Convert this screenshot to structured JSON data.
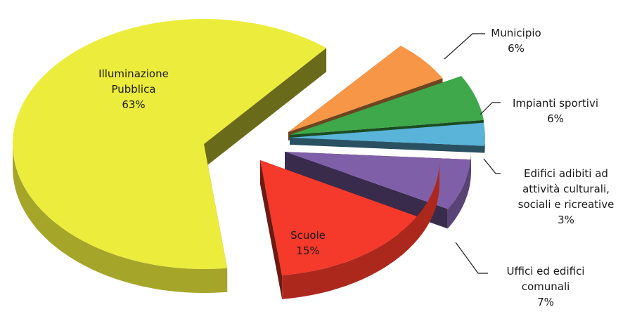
{
  "chart_data": {
    "type": "pie",
    "style": "3d-exploded",
    "title": "",
    "slices": [
      {
        "name": "Illuminazione Pubblica",
        "label_lines": [
          "Illuminazione",
          "Pubblica"
        ],
        "value": 63,
        "value_label": "63%",
        "color": "#ecec3c"
      },
      {
        "name": "Municipio",
        "label_lines": [
          "Municipio"
        ],
        "value": 6,
        "value_label": "6%",
        "color": "#f79646"
      },
      {
        "name": "Impianti sportivi",
        "label_lines": [
          "Impianti sportivi"
        ],
        "value": 6,
        "value_label": "6%",
        "color": "#3ea84a"
      },
      {
        "name": "Edifici adibiti ad attività culturali, sociali e ricreative",
        "label_lines": [
          "Edifici adibiti ad",
          "attività culturali,",
          "sociali e ricreative"
        ],
        "value": 3,
        "value_label": "3%",
        "color": "#5ab4da"
      },
      {
        "name": "Uffici ed edifici comunali",
        "label_lines": [
          "Uffici ed edifici",
          "comunali"
        ],
        "value": 7,
        "value_label": "7%",
        "color": "#7f60a8"
      },
      {
        "name": "Scuole",
        "label_lines": [
          "Scuole"
        ],
        "value": 15,
        "value_label": "15%",
        "color": "#f5392a"
      }
    ]
  }
}
